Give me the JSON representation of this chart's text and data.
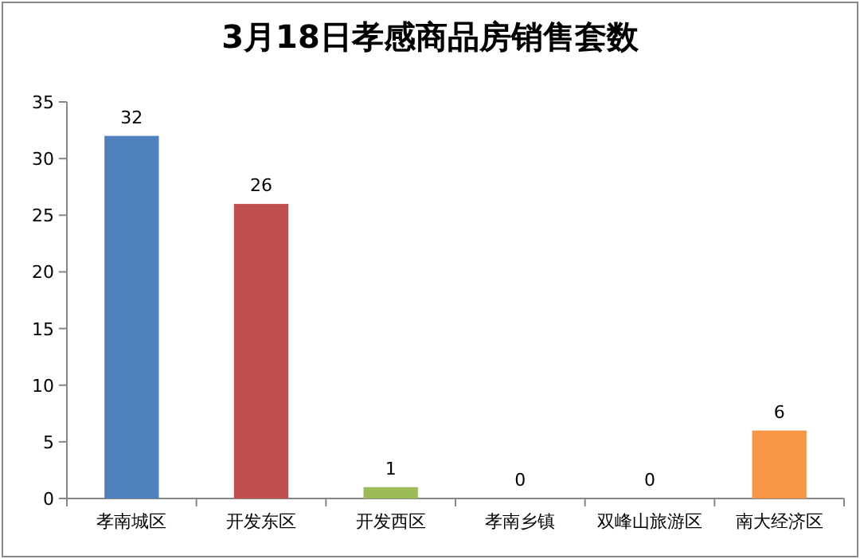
{
  "chart_data": {
    "type": "bar",
    "title": "3月18日孝感商品房销售套数",
    "categories": [
      "孝南城区",
      "开发东区",
      "开发西区",
      "孝南乡镇",
      "双峰山旅游区",
      "南大经济区"
    ],
    "values": [
      32,
      26,
      1,
      0,
      0,
      6
    ],
    "colors": [
      "#4f81bd",
      "#c0504d",
      "#9bbb59",
      "#8064a2",
      "#4bacc6",
      "#f79646"
    ],
    "ylim": [
      0,
      35
    ],
    "yticks": [
      0,
      5,
      10,
      15,
      20,
      25,
      30,
      35
    ],
    "data_labels": true
  }
}
